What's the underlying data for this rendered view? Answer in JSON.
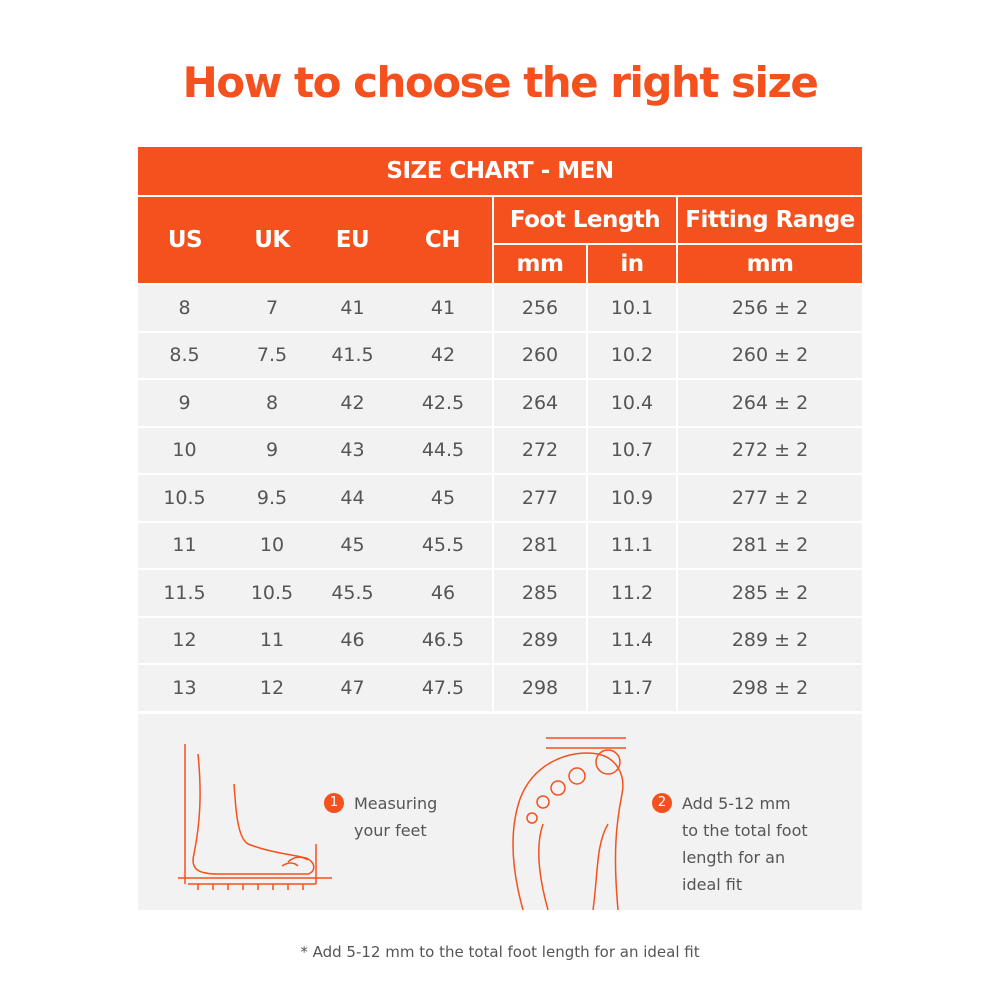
{
  "title": "How to choose the right size",
  "table": {
    "caption": "SIZE CHART - MEN",
    "columns": [
      "US",
      "UK",
      "EU",
      "CH"
    ],
    "group_headers": [
      "Foot Length",
      "Fitting Range"
    ],
    "sub_headers": [
      "mm",
      "in",
      "mm"
    ],
    "rows": [
      [
        "8",
        "7",
        "41",
        "41",
        "256",
        "10.1",
        "256 ± 2"
      ],
      [
        "8.5",
        "7.5",
        "41.5",
        "42",
        "260",
        "10.2",
        "260 ± 2"
      ],
      [
        "9",
        "8",
        "42",
        "42.5",
        "264",
        "10.4",
        "264 ± 2"
      ],
      [
        "10",
        "9",
        "43",
        "44.5",
        "272",
        "10.7",
        "272 ± 2"
      ],
      [
        "10.5",
        "9.5",
        "44",
        "45",
        "277",
        "10.9",
        "277 ± 2"
      ],
      [
        "11",
        "10",
        "45",
        "45.5",
        "281",
        "11.1",
        "281 ± 2"
      ],
      [
        "11.5",
        "10.5",
        "45.5",
        "46",
        "285",
        "11.2",
        "285 ± 2"
      ],
      [
        "12",
        "11",
        "46",
        "46.5",
        "289",
        "11.4",
        "289 ± 2"
      ],
      [
        "13",
        "12",
        "47",
        "47.5",
        "298",
        "11.7",
        "298 ± 2"
      ]
    ]
  },
  "steps": [
    {
      "number": "1",
      "text": "Measuring your feet"
    },
    {
      "number": "2",
      "text": "Add 5-12 mm to the total foot length for an ideal fit"
    }
  ],
  "footnote": "* Add 5-12 mm to the total foot length for an ideal fit"
}
